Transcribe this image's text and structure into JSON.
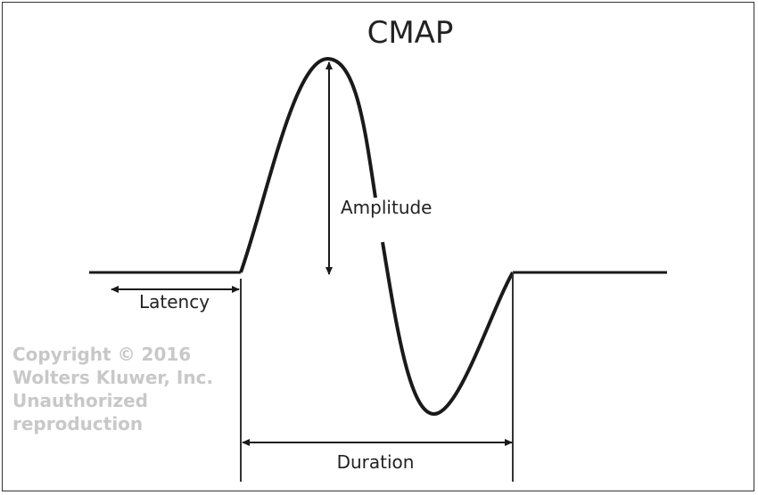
{
  "title": "CMAP",
  "labels": {
    "amplitude": "Amplitude",
    "latency": "Latency",
    "duration": "Duration"
  },
  "watermark": "Copyright © 2016 Wolters Kluwer, Inc. Unauthorized reproduction",
  "colors": {
    "line": "#1a1a1a",
    "watermark": "#c8c8c8"
  }
}
